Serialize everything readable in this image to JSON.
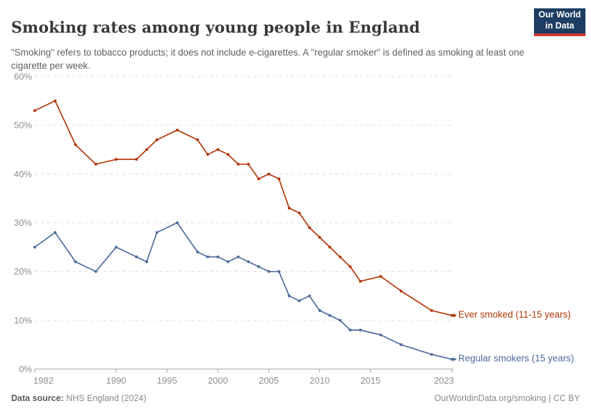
{
  "header": {
    "title": "Smoking rates among young people in England",
    "subtitle": "\"Smoking\" refers to tobacco products; it does not include e-cigarettes. A \"regular smoker\" is defined as smoking at least one cigarette per week.",
    "logo": {
      "line1": "Our World",
      "line2": "in Data"
    }
  },
  "chart_data": {
    "type": "line",
    "title": "Smoking rates among young people in England",
    "xlabel": "",
    "ylabel": "",
    "ylim": [
      0,
      60
    ],
    "y_ticks": [
      0,
      10,
      20,
      30,
      40,
      50,
      60
    ],
    "y_tick_suffix": "%",
    "x_ticks": [
      1982,
      1990,
      1995,
      2000,
      2005,
      2010,
      2015,
      2023
    ],
    "xlim": [
      1982,
      2023
    ],
    "grid": "horizontal-dashed",
    "legend_position": "end-of-line labels",
    "x": [
      1982,
      1984,
      1986,
      1988,
      1990,
      1992,
      1993,
      1994,
      1996,
      1998,
      1999,
      2000,
      2001,
      2002,
      2003,
      2004,
      2005,
      2006,
      2007,
      2008,
      2009,
      2010,
      2011,
      2012,
      2013,
      2014,
      2016,
      2018,
      2021,
      2023
    ],
    "series": [
      {
        "name": "Ever smoked (11-15 years)",
        "color": "#B13507",
        "values": [
          53,
          55,
          46,
          42,
          43,
          43,
          45,
          47,
          49,
          47,
          44,
          45,
          44,
          42,
          42,
          39,
          40,
          39,
          33,
          32,
          29,
          27,
          25,
          23,
          21,
          18,
          19,
          16,
          12,
          11
        ]
      },
      {
        "name": "Regular smokers (15 years)",
        "color": "#4C6A9C",
        "values": [
          25,
          28,
          22,
          20,
          25,
          23,
          22,
          28,
          30,
          24,
          23,
          23,
          22,
          23,
          22,
          21,
          20,
          20,
          15,
          14,
          15,
          12,
          11,
          10,
          8,
          8,
          7,
          5,
          3,
          2
        ]
      }
    ]
  },
  "footer": {
    "data_source_label": "Data source:",
    "data_source_value": " NHS England (2024)",
    "credit": "OurWorldinData.org/smoking | CC BY"
  },
  "colors": {
    "title": "#383838",
    "axis_text": "#8e8e8e",
    "gridline": "#dddddd",
    "axis_line": "#a3a3a3",
    "logo_bg": "#1d3d63",
    "logo_stripe": "#d0342c"
  }
}
